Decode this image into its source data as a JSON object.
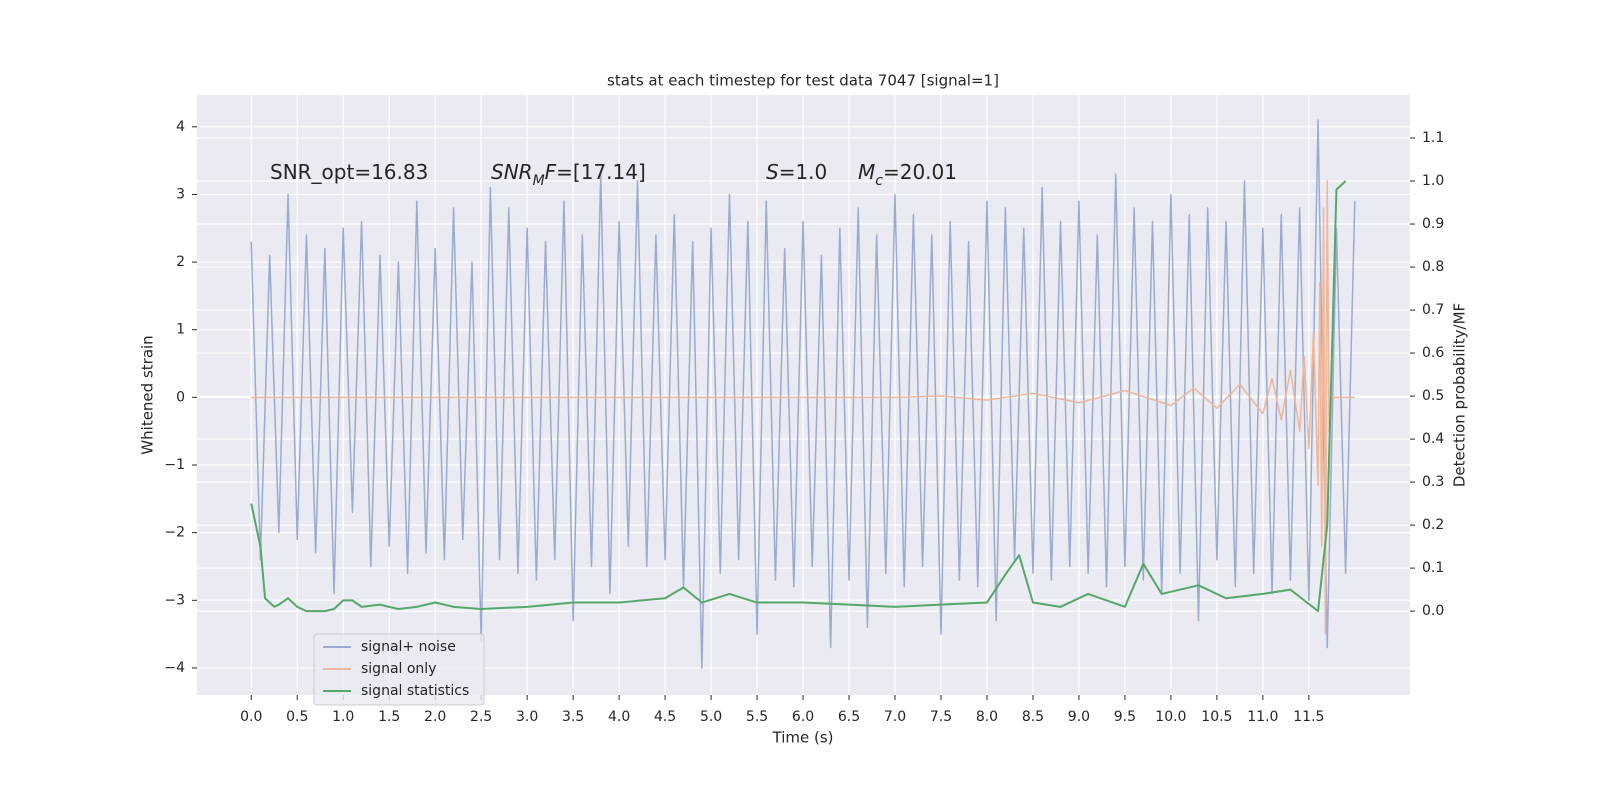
{
  "chart_data": {
    "type": "line",
    "title": "stats at each timestep for test data 7047 [signal=1]",
    "xlabel": "Time (s)",
    "ylabel": "Whitened strain",
    "y2label": "Detection probability/MF",
    "xlim": [
      -0.59,
      12.6
    ],
    "ylim": [
      -4.4,
      4.47
    ],
    "y2lim": [
      -0.195,
      1.2
    ],
    "grid": true,
    "legend": "lower left",
    "xticks": [
      {
        "value": 0,
        "label": "0.0"
      },
      {
        "value": 0.5,
        "label": "0.5"
      },
      {
        "value": 1,
        "label": "1.0"
      },
      {
        "value": 1.5,
        "label": "1.5"
      },
      {
        "value": 2,
        "label": "2.0"
      },
      {
        "value": 2.5,
        "label": "2.5"
      },
      {
        "value": 3,
        "label": "3.0"
      },
      {
        "value": 3.5,
        "label": "3.5"
      },
      {
        "value": 4,
        "label": "4.0"
      },
      {
        "value": 4.5,
        "label": "4.5"
      },
      {
        "value": 5,
        "label": "5.0"
      },
      {
        "value": 5.5,
        "label": "5.5"
      },
      {
        "value": 6,
        "label": "6.0"
      },
      {
        "value": 6.5,
        "label": "6.5"
      },
      {
        "value": 7,
        "label": "7.0"
      },
      {
        "value": 7.5,
        "label": "7.5"
      },
      {
        "value": 8,
        "label": "8.0"
      },
      {
        "value": 8.5,
        "label": "8.5"
      },
      {
        "value": 9,
        "label": "9.0"
      },
      {
        "value": 9.5,
        "label": "9.5"
      },
      {
        "value": 10,
        "label": "10.0"
      },
      {
        "value": 10.5,
        "label": "10.5"
      },
      {
        "value": 11,
        "label": "11.0"
      },
      {
        "value": 11.5,
        "label": "11.5"
      }
    ],
    "yticks": [
      {
        "value": -4,
        "label": "−4"
      },
      {
        "value": -3,
        "label": "−3"
      },
      {
        "value": -2,
        "label": "−2"
      },
      {
        "value": -1,
        "label": "−1"
      },
      0,
      1,
      2,
      3,
      4
    ],
    "y2ticks": [
      {
        "value": 0,
        "label": "0.0"
      },
      {
        "value": 0.1,
        "label": "0.1"
      },
      {
        "value": 0.2,
        "label": "0.2"
      },
      {
        "value": 0.3,
        "label": "0.3"
      },
      {
        "value": 0.4,
        "label": "0.4"
      },
      {
        "value": 0.5,
        "label": "0.5"
      },
      {
        "value": 0.6,
        "label": "0.6"
      },
      {
        "value": 0.7,
        "label": "0.7"
      },
      {
        "value": 0.8,
        "label": "0.8"
      },
      {
        "value": 0.9,
        "label": "0.9"
      },
      {
        "value": 1,
        "label": "1.0"
      },
      {
        "value": 1.1,
        "label": "1.1"
      }
    ],
    "annotations": [
      {
        "parts": [
          {
            "text": "SNR_opt=16.83"
          }
        ]
      },
      {
        "parts": [
          {
            "text": "SNR",
            "italic": true
          },
          {
            "text": "M",
            "italic": true,
            "sub": true
          },
          {
            "text": "F",
            "italic": true
          },
          {
            "text": "=[17.14]"
          }
        ]
      },
      {
        "parts": [
          {
            "text": "S",
            "italic": true
          },
          {
            "text": "=1.0"
          }
        ]
      },
      {
        "parts": [
          {
            "text": "M",
            "italic": true
          },
          {
            "text": "c",
            "italic": true,
            "sub": true
          },
          {
            "text": "=20.01"
          }
        ]
      }
    ],
    "series": [
      {
        "name": "signal+ noise",
        "color": "#9aabcf",
        "x": [
          0,
          0.1,
          0.2,
          0.3,
          0.4,
          0.5,
          0.6,
          0.7,
          0.8,
          0.9,
          1,
          1.1,
          1.2,
          1.3,
          1.4,
          1.5,
          1.6,
          1.7,
          1.8,
          1.9,
          2,
          2.1,
          2.2,
          2.3,
          2.4,
          2.5,
          2.6,
          2.7,
          2.8,
          2.9,
          3,
          3.1,
          3.2,
          3.3,
          3.4,
          3.5,
          3.6,
          3.7,
          3.8,
          3.9,
          4,
          4.1,
          4.2,
          4.3,
          4.4,
          4.5,
          4.6,
          4.7,
          4.8,
          4.9,
          5,
          5.1,
          5.2,
          5.3,
          5.4,
          5.5,
          5.6,
          5.7,
          5.8,
          5.9,
          6,
          6.1,
          6.2,
          6.3,
          6.4,
          6.5,
          6.6,
          6.7,
          6.8,
          6.9,
          7,
          7.1,
          7.2,
          7.3,
          7.4,
          7.5,
          7.6,
          7.7,
          7.8,
          7.9,
          8,
          8.1,
          8.2,
          8.3,
          8.4,
          8.5,
          8.6,
          8.7,
          8.8,
          8.9,
          9,
          9.1,
          9.2,
          9.3,
          9.4,
          9.5,
          9.6,
          9.7,
          9.8,
          9.9,
          10,
          10.1,
          10.2,
          10.3,
          10.4,
          10.5,
          10.6,
          10.7,
          10.8,
          10.9,
          11,
          11.1,
          11.2,
          11.3,
          11.4,
          11.5,
          11.6,
          11.7,
          11.8,
          11.9,
          12
        ],
        "values": [
          2.3,
          -2.4,
          2.1,
          -2.0,
          3.0,
          -2.1,
          2.4,
          -2.3,
          2.2,
          -2.9,
          2.5,
          -1.7,
          2.6,
          -2.5,
          2.1,
          -2.2,
          2.0,
          -2.6,
          2.9,
          -2.3,
          2.2,
          -2.4,
          2.8,
          -2.1,
          2.0,
          -3.6,
          3.1,
          -2.4,
          2.8,
          -2.6,
          2.5,
          -2.7,
          2.3,
          -2.4,
          2.9,
          -3.3,
          2.4,
          -2.5,
          3.3,
          -2.9,
          2.6,
          -2.2,
          3.2,
          -2.5,
          2.4,
          -2.4,
          2.7,
          -2.8,
          2.3,
          -4.0,
          2.5,
          -2.6,
          3.0,
          -2.4,
          2.6,
          -3.5,
          2.9,
          -2.7,
          2.2,
          -2.8,
          2.6,
          -2.5,
          2.1,
          -3.7,
          2.5,
          -2.7,
          2.8,
          -3.4,
          2.4,
          -2.6,
          3.0,
          -2.8,
          2.7,
          -2.5,
          2.4,
          -3.5,
          2.6,
          -2.7,
          2.3,
          -2.8,
          2.9,
          -3.3,
          2.8,
          -2.4,
          2.5,
          -2.6,
          3.1,
          -2.7,
          2.6,
          -2.5,
          2.9,
          -2.6,
          2.4,
          -2.8,
          3.3,
          -2.5,
          2.8,
          -2.7,
          2.6,
          -2.9,
          3.0,
          -2.6,
          2.7,
          -3.3,
          2.8,
          -2.4,
          2.6,
          -2.8,
          3.2,
          -2.6,
          2.5,
          -2.9,
          2.7,
          -2.7,
          2.8,
          -3.0,
          4.1,
          -3.7,
          2.5,
          -2.6,
          2.9
        ]
      },
      {
        "name": "signal only",
        "color": "#eeb69a",
        "x": [
          0,
          7,
          7.5,
          8,
          8.5,
          9,
          9.5,
          10,
          10.25,
          10.5,
          10.75,
          11,
          11.1,
          11.2,
          11.3,
          11.4,
          11.45,
          11.5,
          11.55,
          11.6,
          11.62,
          11.64,
          11.66,
          11.68,
          11.7,
          11.72,
          11.75,
          12
        ],
        "values": [
          0,
          0,
          0.02,
          -0.04,
          0.06,
          -0.08,
          0.1,
          -0.12,
          0.14,
          -0.16,
          0.19,
          -0.24,
          0.28,
          -0.33,
          0.4,
          -0.5,
          0.6,
          -0.75,
          0.95,
          -1.3,
          1.7,
          -2.2,
          2.8,
          -3.5,
          3.2,
          -0.5,
          0,
          0
        ]
      },
      {
        "name": "signal statistics",
        "color": "#55a868",
        "axis": "y2",
        "x": [
          0,
          0.1,
          0.15,
          0.25,
          0.3,
          0.4,
          0.5,
          0.6,
          0.8,
          0.9,
          1.0,
          1.1,
          1.2,
          1.4,
          1.6,
          1.8,
          2.0,
          2.2,
          2.5,
          3.0,
          3.5,
          4.0,
          4.5,
          4.7,
          4.9,
          5.2,
          5.5,
          6.0,
          6.5,
          7.0,
          7.5,
          8.0,
          8.2,
          8.35,
          8.5,
          8.8,
          9.1,
          9.5,
          9.7,
          9.9,
          10.3,
          10.6,
          11.0,
          11.3,
          11.6,
          11.7,
          11.8,
          11.9
        ],
        "values": [
          0.25,
          0.15,
          0.03,
          0.01,
          0.015,
          0.03,
          0.01,
          0.0,
          0.0,
          0.005,
          0.025,
          0.025,
          0.01,
          0.015,
          0.005,
          0.01,
          0.02,
          0.01,
          0.005,
          0.01,
          0.02,
          0.02,
          0.03,
          0.055,
          0.02,
          0.04,
          0.02,
          0.02,
          0.015,
          0.01,
          0.015,
          0.02,
          0.085,
          0.13,
          0.02,
          0.01,
          0.04,
          0.01,
          0.11,
          0.04,
          0.06,
          0.03,
          0.04,
          0.05,
          0.0,
          0.2,
          0.98,
          1.0
        ]
      }
    ]
  }
}
